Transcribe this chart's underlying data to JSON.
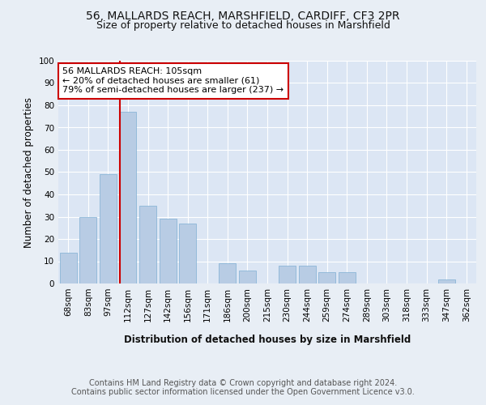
{
  "title1": "56, MALLARDS REACH, MARSHFIELD, CARDIFF, CF3 2PR",
  "title2": "Size of property relative to detached houses in Marshfield",
  "xlabel": "Distribution of detached houses by size in Marshfield",
  "ylabel": "Number of detached properties",
  "categories": [
    "68sqm",
    "83sqm",
    "97sqm",
    "112sqm",
    "127sqm",
    "142sqm",
    "156sqm",
    "171sqm",
    "186sqm",
    "200sqm",
    "215sqm",
    "230sqm",
    "244sqm",
    "259sqm",
    "274sqm",
    "289sqm",
    "303sqm",
    "318sqm",
    "333sqm",
    "347sqm",
    "362sqm"
  ],
  "values": [
    14,
    30,
    49,
    77,
    35,
    29,
    27,
    0,
    9,
    6,
    0,
    8,
    8,
    5,
    5,
    0,
    0,
    0,
    0,
    2,
    0
  ],
  "bar_color": "#b8cce4",
  "bar_edge_color": "#7fafd4",
  "annotation_text": "56 MALLARDS REACH: 105sqm\n← 20% of detached houses are smaller (61)\n79% of semi-detached houses are larger (237) →",
  "annotation_box_color": "#ffffff",
  "annotation_border_color": "#cc0000",
  "vline_color": "#cc0000",
  "ylim": [
    0,
    100
  ],
  "yticks": [
    0,
    10,
    20,
    30,
    40,
    50,
    60,
    70,
    80,
    90,
    100
  ],
  "background_color": "#e8eef5",
  "plot_background_color": "#dce6f4",
  "grid_color": "#ffffff",
  "footer_text": "Contains HM Land Registry data © Crown copyright and database right 2024.\nContains public sector information licensed under the Open Government Licence v3.0.",
  "title_fontsize": 10,
  "subtitle_fontsize": 9,
  "axis_label_fontsize": 8.5,
  "tick_fontsize": 7.5,
  "footer_fontsize": 7
}
